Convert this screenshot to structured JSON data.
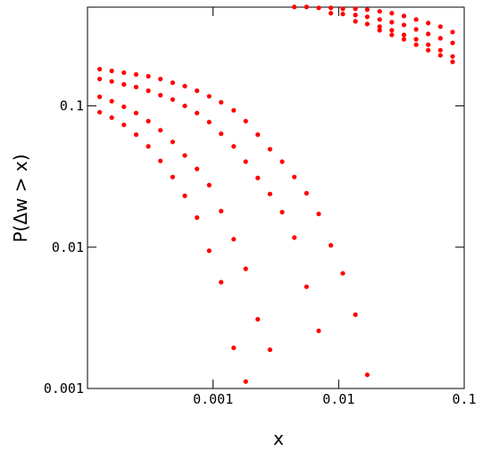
{
  "chart_data": {
    "type": "scatter",
    "color": "#ff0000",
    "log_x": true,
    "log_y": true,
    "x_label": "x",
    "y_label": "P(Δw > x)",
    "xlim": [
      0.0001,
      0.1
    ],
    "ylim": [
      0.001,
      0.5
    ],
    "xticks": [
      0.001,
      0.01,
      0.1
    ],
    "yticks": [
      0.001,
      0.01,
      0.1
    ],
    "series": [
      {
        "x": [
          0.000125,
          0.000156,
          0.000195,
          0.000244,
          0.000305,
          0.000381,
          0.000477,
          0.000596,
          0.000745,
          0.000931,
          0.00116,
          0.00146,
          0.00182,
          0.00227,
          0.00284,
          0.00355,
          0.00444,
          0.00555,
          0.00694,
          0.00867,
          0.0108,
          0.0136,
          0.0169
        ],
        "values": [
          0.182,
          0.177,
          0.172,
          0.167,
          0.162,
          0.155,
          0.146,
          0.138,
          0.128,
          0.117,
          0.106,
          0.093,
          0.078,
          0.0626,
          0.0494,
          0.0403,
          0.0314,
          0.0241,
          0.0172,
          0.0103,
          0.00653,
          0.00333,
          0.00125
        ]
      },
      {
        "x": [
          0.000125,
          0.000156,
          0.000195,
          0.000244,
          0.000305,
          0.000381,
          0.000477,
          0.000596,
          0.000745,
          0.000931,
          0.00116,
          0.00146,
          0.00182,
          0.00227,
          0.00284,
          0.00355,
          0.00444,
          0.00555,
          0.00694
        ],
        "values": [
          0.155,
          0.149,
          0.142,
          0.136,
          0.128,
          0.119,
          0.111,
          0.1,
          0.089,
          0.0768,
          0.0635,
          0.0517,
          0.0403,
          0.0309,
          0.0238,
          0.0177,
          0.0117,
          0.00525,
          0.00256
        ]
      },
      {
        "x": [
          0.000125,
          0.000156,
          0.000195,
          0.000244,
          0.000305,
          0.000381,
          0.000477,
          0.000596,
          0.000745,
          0.000931,
          0.00116,
          0.00146,
          0.00182,
          0.00227,
          0.00284
        ],
        "values": [
          0.116,
          0.108,
          0.0986,
          0.089,
          0.078,
          0.0673,
          0.0556,
          0.0446,
          0.0358,
          0.0275,
          0.018,
          0.0114,
          0.00703,
          0.00309,
          0.00188
        ]
      },
      {
        "x": [
          0.000125,
          0.000156,
          0.000195,
          0.000244,
          0.000305,
          0.000381,
          0.000477,
          0.000596,
          0.000745,
          0.000931,
          0.00116,
          0.00146,
          0.00182
        ],
        "values": [
          0.0902,
          0.0826,
          0.0734,
          0.0626,
          0.0517,
          0.0408,
          0.0314,
          0.0231,
          0.0162,
          0.00944,
          0.00565,
          0.00194,
          0.00112
        ]
      },
      {
        "x": [
          0.00444,
          0.00555,
          0.00694,
          0.00867,
          0.0108,
          0.0136,
          0.0169,
          0.0212,
          0.0265,
          0.0331,
          0.0414,
          0.0517,
          0.0646,
          0.0808
        ],
        "values": [
          0.502,
          0.502,
          0.494,
          0.494,
          0.487,
          0.487,
          0.48,
          0.467,
          0.453,
          0.433,
          0.409,
          0.386,
          0.364,
          0.333
        ]
      },
      {
        "x": [
          0.00867,
          0.0108,
          0.0136,
          0.0169,
          0.0212,
          0.0265,
          0.0331,
          0.0414,
          0.0517,
          0.0646,
          0.0808
        ],
        "values": [
          0.453,
          0.447,
          0.44,
          0.427,
          0.409,
          0.391,
          0.374,
          0.348,
          0.323,
          0.301,
          0.279
        ]
      },
      {
        "x": [
          0.0136,
          0.0169,
          0.0212,
          0.0265,
          0.0331,
          0.0414,
          0.0517,
          0.0646,
          0.0808
        ],
        "values": [
          0.397,
          0.38,
          0.364,
          0.343,
          0.318,
          0.296,
          0.271,
          0.248,
          0.224
        ]
      },
      {
        "x": [
          0.0212,
          0.0265,
          0.0331,
          0.0414,
          0.0517,
          0.0646,
          0.0808
        ],
        "values": [
          0.343,
          0.318,
          0.296,
          0.271,
          0.248,
          0.228,
          0.205
        ]
      }
    ]
  }
}
